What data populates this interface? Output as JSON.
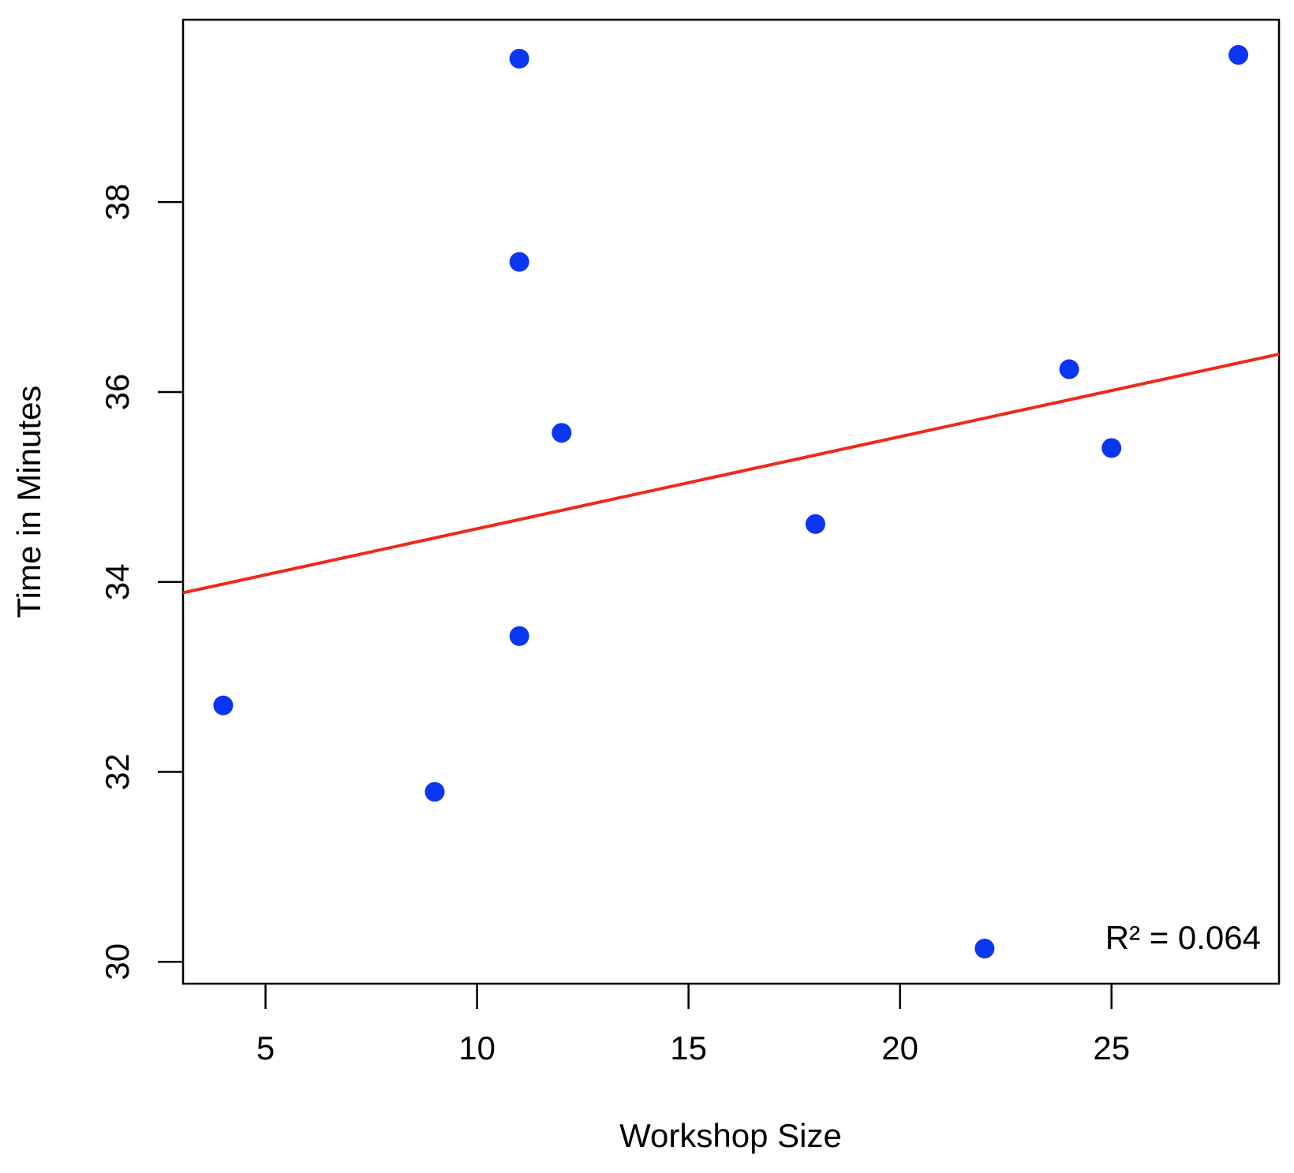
{
  "chart_data": {
    "type": "scatter",
    "x_label": "Workshop Size",
    "y_label": "Time in Minutes",
    "annotation": "R² = 0.064",
    "series": [
      {
        "color": "#0a36f2",
        "x": [
          4,
          9,
          11,
          11,
          11,
          12,
          18,
          22,
          24,
          25,
          28
        ],
        "values": [
          32.7,
          31.79,
          33.43,
          37.37,
          39.51,
          35.57,
          34.61,
          30.14,
          36.24,
          35.41,
          39.55
        ]
      }
    ],
    "fit": {
      "color": "#ee2a1b",
      "intercept": 33.59,
      "slope": 0.097
    },
    "xlim": [
      3.05,
      28.96
    ],
    "ylim": [
      29.77,
      39.92
    ],
    "xticks": [
      5,
      10,
      15,
      20,
      25
    ],
    "yticks": [
      30,
      32,
      34,
      36,
      38
    ],
    "grid": false
  }
}
